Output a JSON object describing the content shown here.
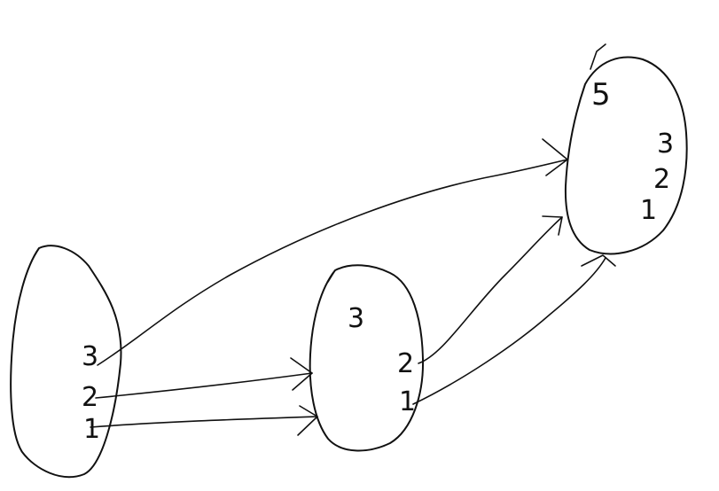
{
  "nodes": [
    {
      "id": "left",
      "labels": [
        "3",
        "2",
        "1"
      ]
    },
    {
      "id": "middle",
      "top_label": "3",
      "labels": [
        "2",
        "1"
      ]
    },
    {
      "id": "right",
      "top_label": "5",
      "labels": [
        "3",
        "2",
        "1"
      ]
    }
  ],
  "edges": [
    {
      "from": "left.3",
      "to": "right"
    },
    {
      "from": "left.2",
      "to": "middle"
    },
    {
      "from": "left.1",
      "to": "middle"
    },
    {
      "from": "middle.2",
      "to": "right"
    },
    {
      "from": "middle.1",
      "to": "right"
    }
  ]
}
